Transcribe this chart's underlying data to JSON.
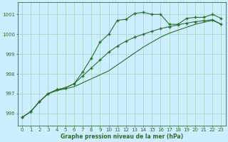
{
  "title": "Graphe pression niveau de la mer (hPa)",
  "background_color": "#cceeff",
  "grid_color": "#aaddcc",
  "line_color": "#2d6e2d",
  "xlim": [
    -0.5,
    23.5
  ],
  "ylim": [
    995.4,
    1001.6
  ],
  "yticks": [
    996,
    997,
    998,
    999,
    1000,
    1001
  ],
  "xticks": [
    0,
    1,
    2,
    3,
    4,
    5,
    6,
    7,
    8,
    9,
    10,
    11,
    12,
    13,
    14,
    15,
    16,
    17,
    18,
    19,
    20,
    21,
    22,
    23
  ],
  "series1_x": [
    0,
    1,
    2,
    3,
    4,
    5,
    6,
    7,
    8,
    9,
    10,
    11,
    12,
    13,
    14,
    15,
    16,
    17,
    18,
    19,
    20,
    21,
    22,
    23
  ],
  "series1_y": [
    995.8,
    996.1,
    996.6,
    997.0,
    997.15,
    997.25,
    997.35,
    997.55,
    997.75,
    997.95,
    998.15,
    998.45,
    998.75,
    999.05,
    999.35,
    999.6,
    999.85,
    1000.05,
    1000.2,
    1000.35,
    1000.5,
    1000.6,
    1000.7,
    1000.5
  ],
  "series2_x": [
    0,
    1,
    2,
    3,
    4,
    5,
    6,
    7,
    8,
    9,
    10,
    11,
    12,
    13,
    14,
    15,
    16,
    17,
    18,
    19,
    20,
    21,
    22,
    23
  ],
  "series2_y": [
    995.8,
    996.1,
    996.6,
    997.0,
    997.2,
    997.3,
    997.5,
    998.1,
    998.8,
    999.6,
    1000.0,
    1000.7,
    1000.75,
    1001.05,
    1001.1,
    1001.0,
    1001.0,
    1000.5,
    1000.5,
    1000.8,
    1000.85,
    1000.85,
    1001.0,
    1000.8
  ],
  "series3_x": [
    0,
    1,
    2,
    3,
    4,
    5,
    6,
    7,
    8,
    9,
    10,
    11,
    12,
    13,
    14,
    15,
    16,
    17,
    18,
    19,
    20,
    21,
    22,
    23
  ],
  "series3_y": [
    995.8,
    996.1,
    996.6,
    997.0,
    997.2,
    997.3,
    997.5,
    997.9,
    998.3,
    998.7,
    999.1,
    999.4,
    999.65,
    999.85,
    1000.0,
    1000.15,
    1000.28,
    1000.38,
    1000.47,
    1000.56,
    1000.63,
    1000.68,
    1000.73,
    1000.5
  ]
}
